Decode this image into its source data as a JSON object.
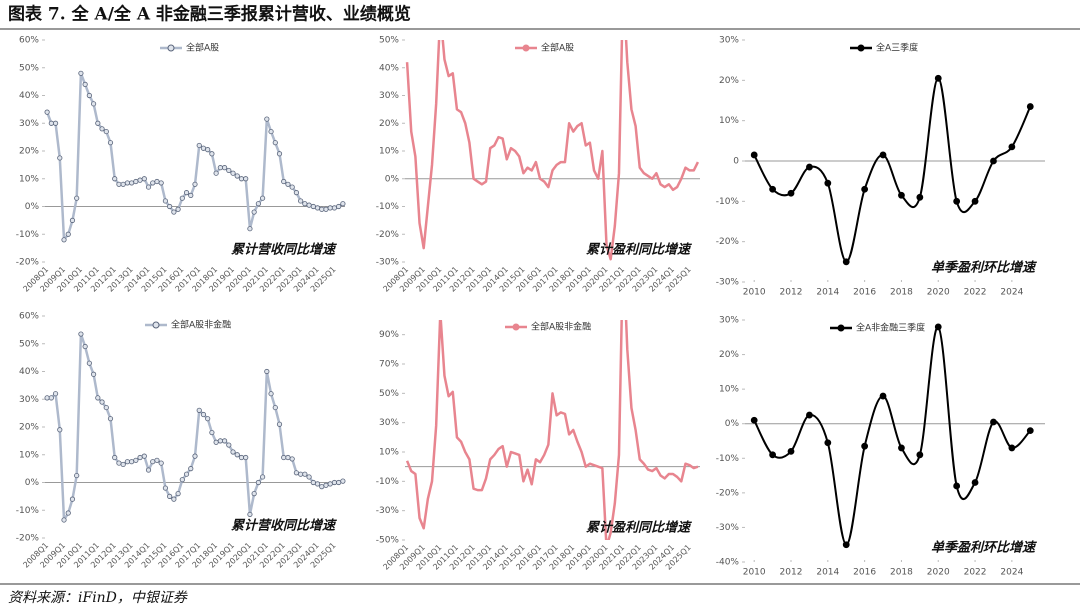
{
  "title": "图表 7. 全 A/全 A 非金融三季报累计营收、业绩概览",
  "source": "资料来源：iFinD，中银证券",
  "chart_data": [
    {
      "type": "line",
      "markers": true,
      "legend": "top",
      "annotation": "累计营收同比增速",
      "categories": [
        "2008Q1",
        null,
        null,
        null,
        "2009Q1",
        null,
        null,
        null,
        "2010Q1",
        null,
        null,
        null,
        "2011Q1",
        null,
        null,
        null,
        "2012Q1",
        null,
        null,
        null,
        "2013Q1",
        null,
        null,
        null,
        "2014Q1",
        null,
        null,
        null,
        "2015Q1",
        null,
        null,
        null,
        "2016Q1",
        null,
        null,
        null,
        "2017Q1",
        null,
        null,
        null,
        "2018Q1",
        null,
        null,
        null,
        "2019Q1",
        null,
        null,
        null,
        "2020Q1",
        null,
        null,
        null,
        "2021Q1",
        null,
        null,
        null,
        "2022Q1",
        null,
        null,
        null,
        "2023Q1",
        null,
        null,
        null,
        "2024Q1",
        null,
        null,
        null,
        "2025Q1",
        null,
        null
      ],
      "series": [
        {
          "name": "全部A股",
          "color": "#aeb9cc",
          "values": [
            34,
            30,
            30,
            17.5,
            -12,
            -10,
            -5,
            3,
            48,
            44,
            40,
            37,
            30,
            28,
            27,
            23,
            10,
            8,
            8,
            8.5,
            8.5,
            9,
            9.5,
            10,
            7,
            8.5,
            9,
            8.5,
            2,
            0,
            -2,
            -1,
            3,
            5,
            4,
            8,
            22,
            21,
            20.5,
            19,
            12,
            14,
            14,
            13,
            12,
            11,
            10,
            10,
            -8,
            -2,
            1,
            3,
            31.5,
            27,
            23,
            19,
            9,
            8,
            7,
            5,
            2,
            1,
            0.5,
            0,
            -0.5,
            -1,
            -1,
            -0.5,
            -0.5,
            0,
            1
          ]
        }
      ],
      "ylim": [
        -20,
        60
      ],
      "yticks": [
        {
          "value": -20,
          "label": "-20%"
        },
        {
          "value": -10,
          "label": "-10%"
        },
        {
          "value": 0,
          "label": "0%"
        },
        {
          "value": 10,
          "label": "10%"
        },
        {
          "value": 20,
          "label": "20%"
        },
        {
          "value": 30,
          "label": "30%"
        },
        {
          "value": 40,
          "label": "40%"
        },
        {
          "value": 50,
          "label": "50%"
        },
        {
          "value": 60,
          "label": "60%"
        }
      ]
    },
    {
      "type": "line",
      "markers": false,
      "legend": "top",
      "annotation": "累计盈利同比增速",
      "categories": [
        "2008Q1",
        null,
        null,
        null,
        "2009Q1",
        null,
        null,
        null,
        "2010Q1",
        null,
        null,
        null,
        "2011Q1",
        null,
        null,
        null,
        "2012Q1",
        null,
        null,
        null,
        "2013Q1",
        null,
        null,
        null,
        "2014Q1",
        null,
        null,
        null,
        "2015Q1",
        null,
        null,
        null,
        "2016Q1",
        null,
        null,
        null,
        "2017Q1",
        null,
        null,
        null,
        "2018Q1",
        null,
        null,
        null,
        "2019Q1",
        null,
        null,
        null,
        "2020Q1",
        null,
        null,
        null,
        "2021Q1",
        null,
        null,
        null,
        "2022Q1",
        null,
        null,
        null,
        "2023Q1",
        null,
        null,
        null,
        "2024Q1",
        null,
        null,
        null,
        "2025Q1",
        null,
        null
      ],
      "series": [
        {
          "name": "全部A股",
          "color": "#e8858f",
          "values": [
            42,
            17,
            8,
            -16,
            -25,
            -10,
            5,
            27,
            60,
            43,
            37,
            38,
            25,
            24,
            20,
            13,
            0,
            -1,
            -2,
            -1,
            11,
            12,
            15,
            14.5,
            7,
            11,
            10,
            8,
            2,
            4,
            3,
            6,
            0,
            -1,
            -3,
            3,
            5,
            6,
            6,
            20,
            17,
            19,
            20,
            12,
            13,
            3,
            0,
            10,
            -24,
            -29,
            -17,
            2,
            70,
            42,
            25,
            19,
            4,
            2,
            1,
            0,
            2,
            -2,
            -3,
            -2,
            -4,
            -3,
            0,
            4,
            3,
            3,
            6
          ]
        }
      ],
      "ylim": [
        -30,
        50
      ],
      "yticks": [
        {
          "value": -30,
          "label": "-30%"
        },
        {
          "value": -20,
          "label": "-20%"
        },
        {
          "value": -10,
          "label": "-10%"
        },
        {
          "value": 0,
          "label": "0%"
        },
        {
          "value": 10,
          "label": "10%"
        },
        {
          "value": 20,
          "label": "20%"
        },
        {
          "value": 30,
          "label": "30%"
        },
        {
          "value": 40,
          "label": "40%"
        },
        {
          "value": 50,
          "label": "50%"
        }
      ]
    },
    {
      "type": "smooth",
      "markers": true,
      "legend": "top",
      "annotation": "单季盈利环比增速",
      "x": [
        2010,
        2011,
        2012,
        2013,
        2014,
        2015,
        2016,
        2017,
        2018,
        2019,
        2020,
        2021,
        2022,
        2023,
        2024,
        2025
      ],
      "series": [
        {
          "name": "全A三季度",
          "color": "#000000",
          "values": [
            1.5,
            -7,
            -8,
            -1.5,
            -5.5,
            -25,
            -7,
            1.5,
            -8.5,
            -9,
            20.5,
            -10,
            -10,
            0,
            3.5,
            13.5
          ]
        }
      ],
      "xlim": [
        2009.5,
        2025.8
      ],
      "xticks": [
        2010,
        2012,
        2014,
        2016,
        2018,
        2020,
        2022,
        2024
      ],
      "ylim": [
        -30,
        30
      ],
      "yticks": [
        {
          "value": -30,
          "label": "-30%"
        },
        {
          "value": -20,
          "label": "-20%"
        },
        {
          "value": -10,
          "label": "-10%"
        },
        {
          "value": 0,
          "label": "0"
        },
        {
          "value": 10,
          "label": "10%"
        },
        {
          "value": 20,
          "label": "20%"
        },
        {
          "value": 30,
          "label": "30%"
        }
      ]
    },
    {
      "type": "line",
      "markers": true,
      "legend": "top",
      "annotation": "累计营收同比增速",
      "categories": [
        "2008Q1",
        null,
        null,
        null,
        "2009Q1",
        null,
        null,
        null,
        "2010Q1",
        null,
        null,
        null,
        "2011Q1",
        null,
        null,
        null,
        "2012Q1",
        null,
        null,
        null,
        "2013Q1",
        null,
        null,
        null,
        "2014Q1",
        null,
        null,
        null,
        "2015Q1",
        null,
        null,
        null,
        "2016Q1",
        null,
        null,
        null,
        "2017Q1",
        null,
        null,
        null,
        "2018Q1",
        null,
        null,
        null,
        "2019Q1",
        null,
        null,
        null,
        "2020Q1",
        null,
        null,
        null,
        "2021Q1",
        null,
        null,
        null,
        "2022Q1",
        null,
        null,
        null,
        "2023Q1",
        null,
        null,
        null,
        "2024Q1",
        null,
        null,
        null,
        "2025Q1",
        null,
        null
      ],
      "series": [
        {
          "name": "全部A股非金融",
          "color": "#aeb9cc",
          "values": [
            30.5,
            30.5,
            32,
            19,
            -13.5,
            -11,
            -6,
            2.5,
            53.5,
            49,
            43,
            39,
            30.5,
            29,
            27,
            23,
            9,
            7,
            6.5,
            7.5,
            7.5,
            8,
            9,
            9.5,
            4.5,
            7.5,
            8,
            7,
            -2,
            -5,
            -6,
            -4,
            1,
            3,
            5,
            9.5,
            26,
            24.5,
            23,
            18,
            14.5,
            15,
            15,
            13.5,
            11,
            10,
            9,
            9,
            -11.5,
            -4,
            0,
            2,
            40,
            32,
            27,
            21,
            9,
            9,
            8.5,
            3.5,
            3,
            3,
            2,
            0,
            -0.5,
            -1.5,
            -1,
            -0.5,
            0,
            0,
            0.5
          ]
        }
      ],
      "ylim": [
        -20,
        60
      ],
      "yticks": [
        {
          "value": -20,
          "label": "-20%"
        },
        {
          "value": -10,
          "label": "-10%"
        },
        {
          "value": 0,
          "label": "0%"
        },
        {
          "value": 10,
          "label": "10%"
        },
        {
          "value": 20,
          "label": "20%"
        },
        {
          "value": 30,
          "label": "30%"
        },
        {
          "value": 40,
          "label": "40%"
        },
        {
          "value": 50,
          "label": "50%"
        },
        {
          "value": 60,
          "label": "60%"
        }
      ]
    },
    {
      "type": "line",
      "markers": false,
      "legend": "top",
      "annotation": "累计盈利同比增速",
      "categories": [
        "2008Q1",
        null,
        null,
        null,
        "2009Q1",
        null,
        null,
        null,
        "2010Q1",
        null,
        null,
        null,
        "2011Q1",
        null,
        null,
        null,
        "2012Q1",
        null,
        null,
        null,
        "2013Q1",
        null,
        null,
        null,
        "2014Q1",
        null,
        null,
        null,
        "2015Q1",
        null,
        null,
        null,
        "2016Q1",
        null,
        null,
        null,
        "2017Q1",
        null,
        null,
        null,
        "2018Q1",
        null,
        null,
        null,
        "2019Q1",
        null,
        null,
        null,
        "2020Q1",
        null,
        null,
        null,
        "2021Q1",
        null,
        null,
        null,
        "2022Q1",
        null,
        null,
        null,
        "2023Q1",
        null,
        null,
        null,
        "2024Q1",
        null,
        null,
        null,
        "2025Q1",
        null,
        null
      ],
      "series": [
        {
          "name": "全部A股非金融",
          "color": "#e8858f",
          "values": [
            4,
            -3,
            -5,
            -35,
            -42,
            -22,
            -10,
            28,
            105,
            62,
            48,
            51,
            20,
            17,
            10,
            5,
            -15,
            -16,
            -16,
            -8,
            5,
            8,
            12,
            14,
            0,
            10,
            9,
            8,
            -10,
            -2,
            -12,
            5,
            3,
            8,
            15,
            50,
            35,
            37,
            36,
            22,
            25,
            17,
            10,
            0,
            2,
            1,
            0,
            -1,
            -55,
            -45,
            -25,
            8,
            150,
            80,
            40,
            25,
            5,
            2,
            -2,
            -3,
            -1,
            -6,
            -8,
            -5,
            -5,
            -7,
            -10,
            2,
            1,
            -1,
            0
          ]
        }
      ],
      "ylim": [
        -50,
        100
      ],
      "yticks": [
        {
          "value": -50,
          "label": "-50%"
        },
        {
          "value": -30,
          "label": "-30%"
        },
        {
          "value": -10,
          "label": "-10%"
        },
        {
          "value": 10,
          "label": "10%"
        },
        {
          "value": 30,
          "label": "30%"
        },
        {
          "value": 50,
          "label": "50%"
        },
        {
          "value": 70,
          "label": "70%"
        },
        {
          "value": 90,
          "label": "90%"
        }
      ]
    },
    {
      "type": "smooth",
      "markers": true,
      "legend": "top",
      "annotation": "单季盈利环比增速",
      "x": [
        2010,
        2011,
        2012,
        2013,
        2014,
        2015,
        2016,
        2017,
        2018,
        2019,
        2020,
        2021,
        2022,
        2023,
        2024,
        2025
      ],
      "series": [
        {
          "name": "全A非金融三季度",
          "color": "#000000",
          "values": [
            1,
            -9,
            -8,
            2.5,
            -5.5,
            -35,
            -6.5,
            8,
            -7,
            -9,
            28,
            -18,
            -17,
            0.5,
            -7,
            -2
          ]
        }
      ],
      "xlim": [
        2009.5,
        2025.8
      ],
      "xticks": [
        2010,
        2012,
        2014,
        2016,
        2018,
        2020,
        2022,
        2024
      ],
      "ylim": [
        -40,
        30
      ],
      "yticks": [
        {
          "value": -40,
          "label": "-40%"
        },
        {
          "value": -30,
          "label": "-30%"
        },
        {
          "value": -20,
          "label": "-20%"
        },
        {
          "value": -10,
          "label": "-10%"
        },
        {
          "value": 0,
          "label": "0%"
        },
        {
          "value": 10,
          "label": "10%"
        },
        {
          "value": 20,
          "label": "20%"
        },
        {
          "value": 30,
          "label": "30%"
        }
      ]
    }
  ]
}
